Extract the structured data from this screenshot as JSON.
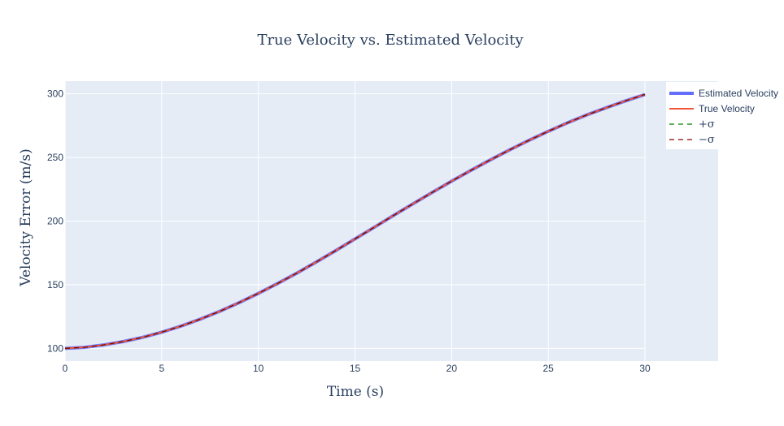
{
  "chart_data": {
    "type": "line",
    "title": "True Velocity vs. Estimated Velocity",
    "xlabel": "Time (s)",
    "ylabel": "Velocity Error (m/s)",
    "xlim": [
      0,
      30
    ],
    "ylim": [
      90,
      310
    ],
    "x_ticks": [
      0,
      5,
      10,
      15,
      20,
      25,
      30
    ],
    "y_ticks": [
      100,
      150,
      200,
      250,
      300
    ],
    "grid": true,
    "legend_position": "top-right",
    "plot_background": "#e5ecf6",
    "x": [
      0,
      1,
      2,
      3,
      4,
      5,
      6,
      7,
      8,
      9,
      10,
      11,
      12,
      13,
      14,
      15,
      16,
      17,
      18,
      19,
      20,
      21,
      22,
      23,
      24,
      25,
      26,
      27,
      28,
      29,
      30
    ],
    "series": [
      {
        "name": "Estimated Velocity",
        "color": "#636efa",
        "dash": "solid",
        "width": "thick",
        "values": [
          100.0,
          100.8,
          102.7,
          105.3,
          108.6,
          112.7,
          117.5,
          123.0,
          129.1,
          135.9,
          143.2,
          151.0,
          159.2,
          167.9,
          176.8,
          186.0,
          195.2,
          204.5,
          213.6,
          222.6,
          231.4,
          239.9,
          248.1,
          256.0,
          263.5,
          270.6,
          277.3,
          283.5,
          289.1,
          294.5,
          299.5
        ]
      },
      {
        "name": "True Velocity",
        "color": "#ef553b",
        "dash": "solid",
        "width": "normal",
        "values": [
          100.0,
          100.8,
          102.7,
          105.3,
          108.6,
          112.7,
          117.5,
          123.0,
          129.1,
          135.9,
          143.2,
          151.0,
          159.2,
          167.9,
          176.8,
          186.0,
          195.2,
          204.5,
          213.6,
          222.6,
          231.4,
          239.9,
          248.1,
          256.0,
          263.5,
          270.6,
          277.3,
          283.5,
          289.1,
          294.5,
          299.5
        ]
      },
      {
        "name": "+σ",
        "color": "#008000",
        "dash": "dash",
        "width": "thin",
        "values": [
          100.0,
          100.8,
          102.7,
          105.3,
          108.6,
          112.7,
          117.5,
          123.0,
          129.1,
          135.9,
          143.2,
          151.0,
          159.2,
          167.9,
          176.8,
          186.0,
          195.2,
          204.5,
          213.6,
          222.6,
          231.4,
          239.9,
          248.1,
          256.0,
          263.5,
          270.6,
          277.3,
          283.5,
          289.1,
          294.5,
          299.5
        ]
      },
      {
        "name": "−σ",
        "color": "#8b0000",
        "dash": "dash",
        "width": "thin",
        "values": [
          100.0,
          100.8,
          102.7,
          105.3,
          108.6,
          112.7,
          117.5,
          123.0,
          129.1,
          135.9,
          143.2,
          151.0,
          159.2,
          167.9,
          176.8,
          186.0,
          195.2,
          204.5,
          213.6,
          222.6,
          231.4,
          239.9,
          248.1,
          256.0,
          263.5,
          270.6,
          277.3,
          283.5,
          289.1,
          294.5,
          299.5
        ]
      }
    ]
  }
}
